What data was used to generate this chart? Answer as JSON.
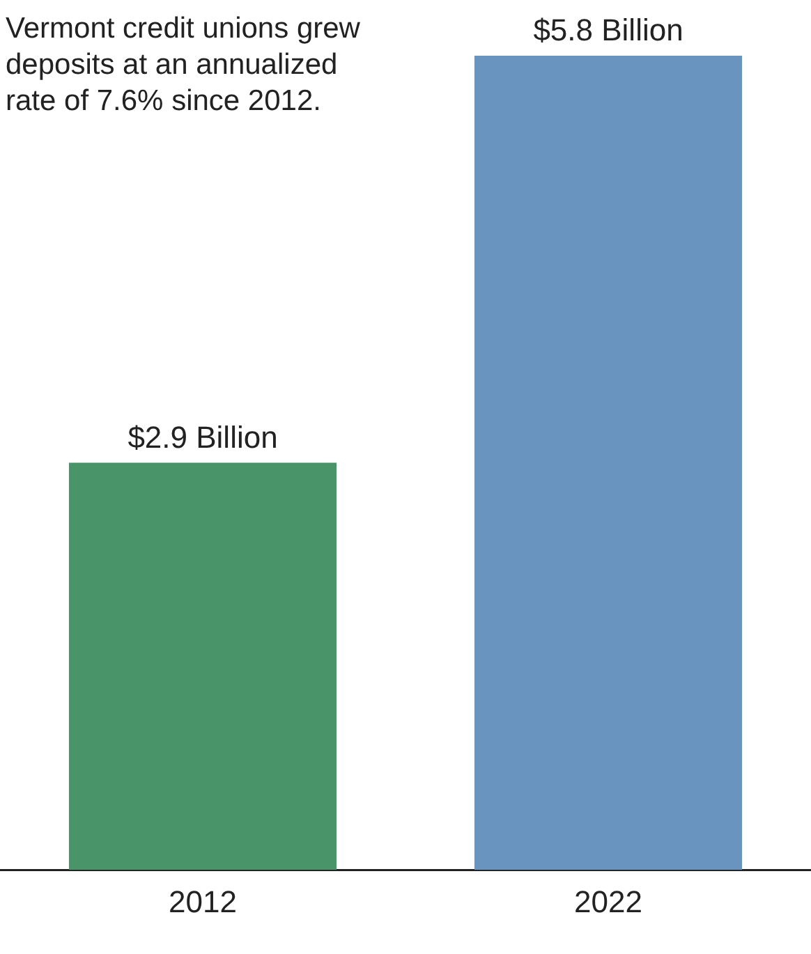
{
  "chart_data": {
    "type": "bar",
    "categories": [
      "2012",
      "2022"
    ],
    "values": [
      2.9,
      5.8
    ],
    "colors": [
      "#4a9469",
      "#6894bf"
    ],
    "value_labels": [
      "$2.9 Billion",
      "$5.8 Billion"
    ],
    "annotations": [
      "Vermont credit unions grew deposits at an annualized rate of 7.6% since 2012."
    ],
    "grid": false,
    "legend": false
  }
}
